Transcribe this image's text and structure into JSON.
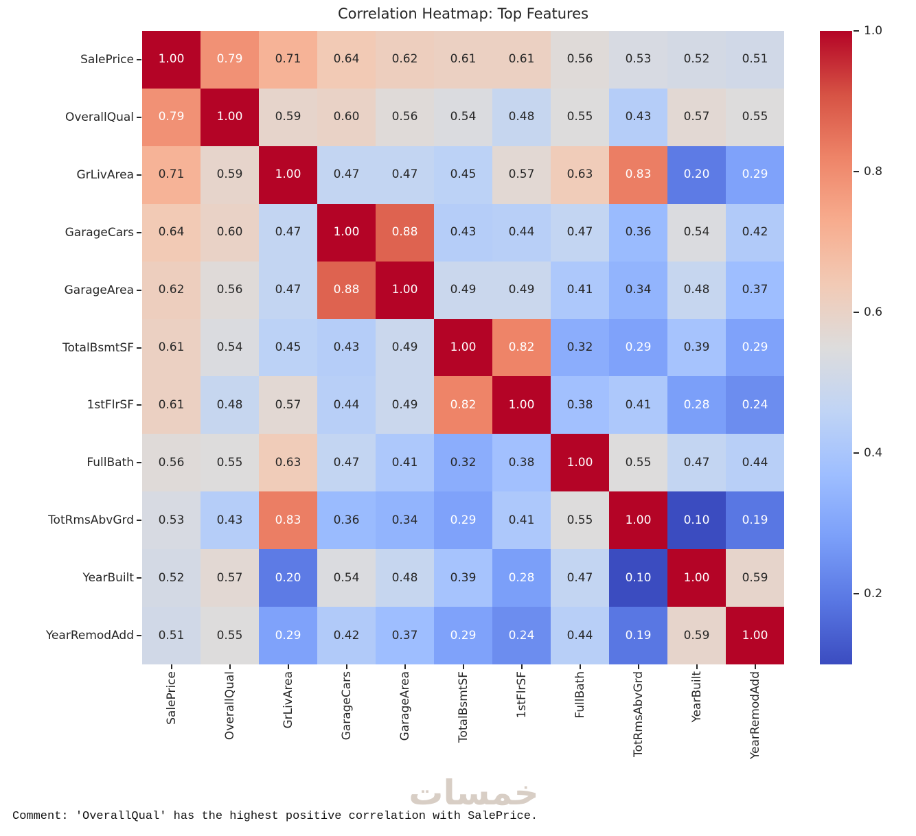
{
  "figure": {
    "title": "Correlation Heatmap: Top Features",
    "comment": "Comment: 'OverallQual' has the highest positive correlation with SalePrice.",
    "watermark": "خمسات"
  },
  "chart_data": {
    "type": "heatmap",
    "title": "Correlation Heatmap: Top Features",
    "labels": [
      "SalePrice",
      "OverallQual",
      "GrLivArea",
      "GarageCars",
      "GarageArea",
      "TotalBsmtSF",
      "1stFlrSF",
      "FullBath",
      "TotRmsAbvGrd",
      "YearBuilt",
      "YearRemodAdd"
    ],
    "matrix": [
      [
        1.0,
        0.79,
        0.71,
        0.64,
        0.62,
        0.61,
        0.61,
        0.56,
        0.53,
        0.52,
        0.51
      ],
      [
        0.79,
        1.0,
        0.59,
        0.6,
        0.56,
        0.54,
        0.48,
        0.55,
        0.43,
        0.57,
        0.55
      ],
      [
        0.71,
        0.59,
        1.0,
        0.47,
        0.47,
        0.45,
        0.57,
        0.63,
        0.83,
        0.2,
        0.29
      ],
      [
        0.64,
        0.6,
        0.47,
        1.0,
        0.88,
        0.43,
        0.44,
        0.47,
        0.36,
        0.54,
        0.42
      ],
      [
        0.62,
        0.56,
        0.47,
        0.88,
        1.0,
        0.49,
        0.49,
        0.41,
        0.34,
        0.48,
        0.37
      ],
      [
        0.61,
        0.54,
        0.45,
        0.43,
        0.49,
        1.0,
        0.82,
        0.32,
        0.29,
        0.39,
        0.29
      ],
      [
        0.61,
        0.48,
        0.57,
        0.44,
        0.49,
        0.82,
        1.0,
        0.38,
        0.41,
        0.28,
        0.24
      ],
      [
        0.56,
        0.55,
        0.63,
        0.47,
        0.41,
        0.32,
        0.38,
        1.0,
        0.55,
        0.47,
        0.44
      ],
      [
        0.53,
        0.43,
        0.83,
        0.36,
        0.34,
        0.29,
        0.41,
        0.55,
        1.0,
        0.1,
        0.19
      ],
      [
        0.52,
        0.57,
        0.2,
        0.54,
        0.48,
        0.39,
        0.28,
        0.47,
        0.1,
        1.0,
        0.59
      ],
      [
        0.51,
        0.55,
        0.29,
        0.42,
        0.37,
        0.29,
        0.24,
        0.44,
        0.19,
        0.59,
        1.0
      ]
    ],
    "vmin": 0.1,
    "vmax": 1.0,
    "value_format": "0.00",
    "colorbar_ticks": [
      1.0,
      0.8,
      0.6,
      0.4,
      0.2
    ],
    "legend_position": "right",
    "grid": false,
    "colormap": {
      "name": "coolwarm",
      "anchors": [
        "#3b4cc0",
        "#5977e3",
        "#7b9ff9",
        "#9ebeff",
        "#c0d4f5",
        "#dddcdc",
        "#f2cab5",
        "#f7ac8e",
        "#ee8468",
        "#d65244",
        "#b40426"
      ]
    },
    "annot_colors": {
      "dark": "#262626",
      "light": "#ffffff"
    }
  }
}
